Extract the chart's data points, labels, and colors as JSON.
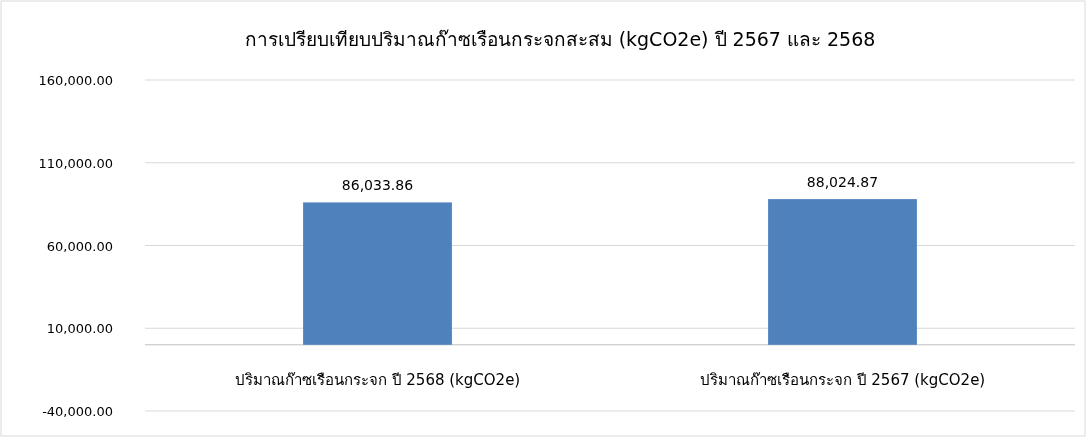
{
  "chart_data": {
    "type": "bar",
    "title": "การเปรียบเทียบปริมาณก๊าซเรือนกระจกสะสม (kgCO2e) ปี 2567 และ 2568",
    "categories": [
      "ปริมาณก๊าซเรือนกระจก ปี 2568 (kgCO2e)",
      "ปริมาณก๊าซเรือนกระจก ปี 2567 (kgCO2e)"
    ],
    "values": [
      86033.86,
      88024.87
    ],
    "color": "#4f81bd",
    "ylim": [
      -40000,
      160000
    ],
    "yticks": [
      {
        "value": -40000,
        "label": "-40,000.00"
      },
      {
        "value": 10000,
        "label": "10,000.00"
      },
      {
        "value": 60000,
        "label": "60,000.00"
      },
      {
        "value": 110000,
        "label": "110,000.00"
      },
      {
        "value": 160000,
        "label": "160,000.00"
      }
    ],
    "grid": "y",
    "value_labels": [
      "86,033.86",
      "88,024.87"
    ]
  }
}
